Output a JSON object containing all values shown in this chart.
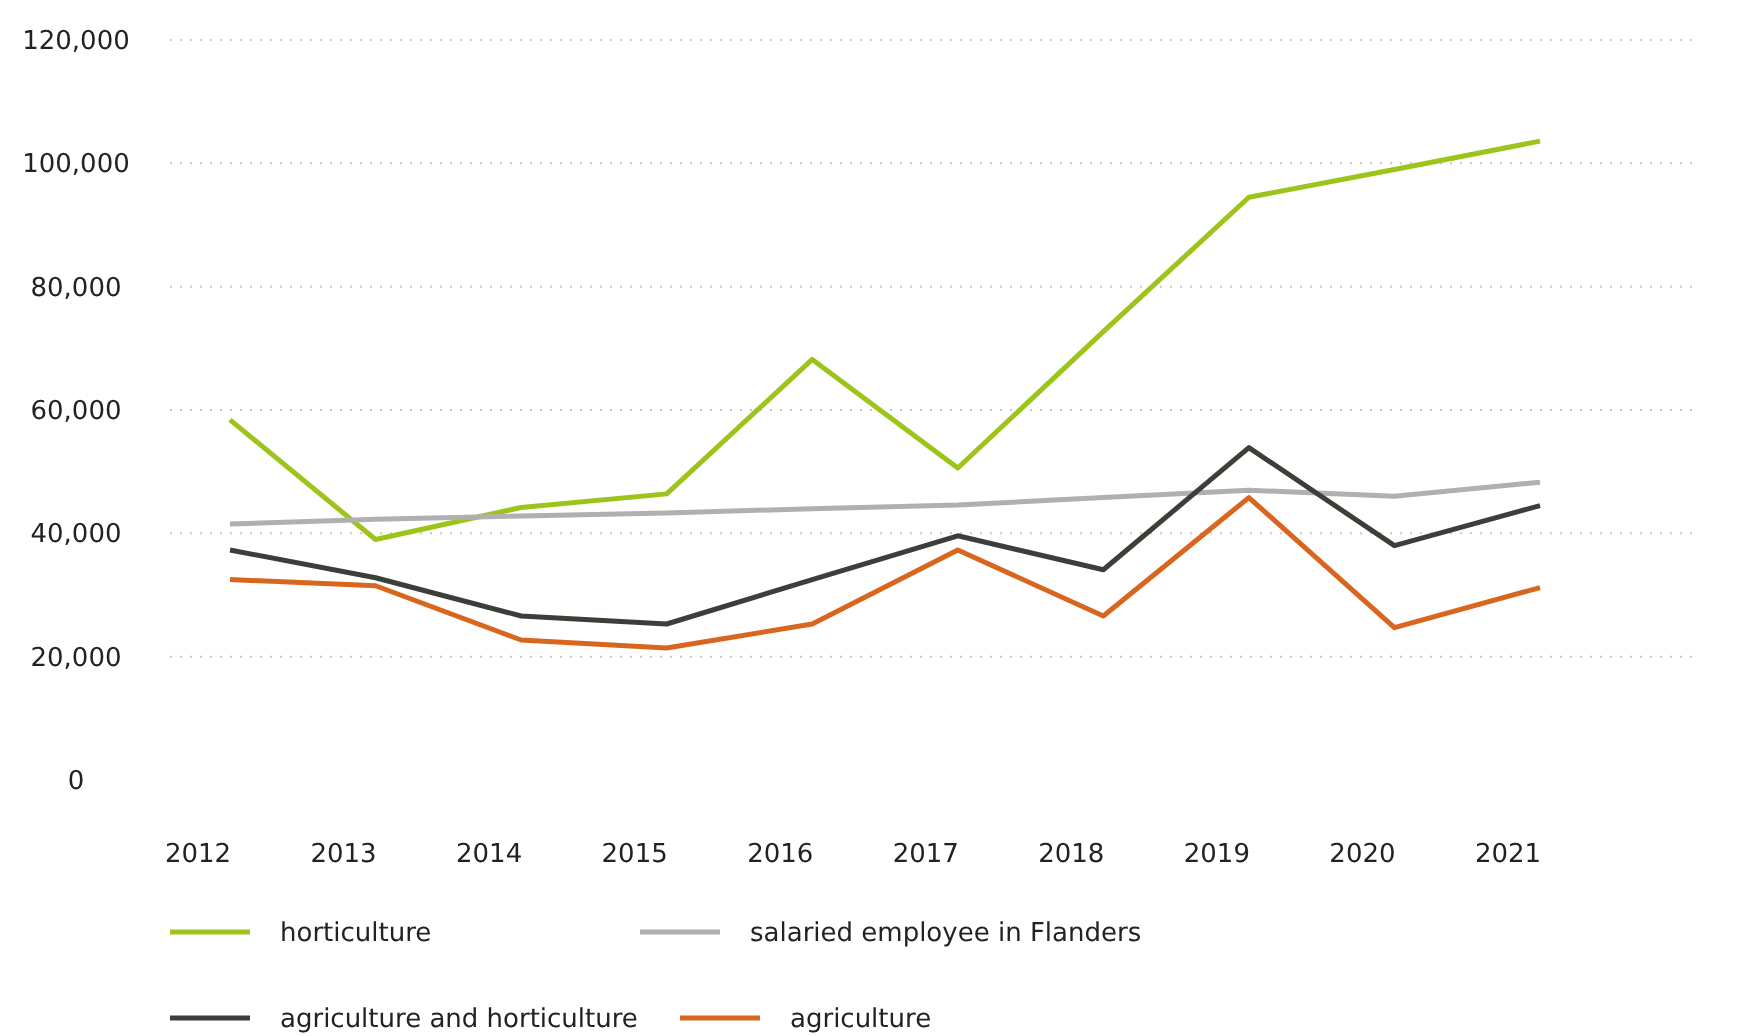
{
  "chart_data": {
    "type": "line",
    "categories": [
      "2012",
      "2013",
      "2014",
      "2015",
      "2016",
      "2017",
      "2018",
      "2019",
      "2020",
      "2021"
    ],
    "ylim": [
      0,
      120000
    ],
    "yticks": [
      {
        "value": 0,
        "label": "0"
      },
      {
        "value": 20000,
        "label": "20,000"
      },
      {
        "value": 40000,
        "label": "40,000"
      },
      {
        "value": 60000,
        "label": "60,000"
      },
      {
        "value": 80000,
        "label": "80,000"
      },
      {
        "value": 100000,
        "label": "100,000"
      },
      {
        "value": 120000,
        "label": "120,000"
      }
    ],
    "grid": "y",
    "legend": "bottom",
    "marker": "none",
    "line_style": "solid",
    "series": [
      {
        "name": "horticulture",
        "color": "#9dc41a",
        "values": [
          58400,
          39000,
          44200,
          46400,
          68200,
          50600,
          72700,
          94500,
          99000,
          103600
        ]
      },
      {
        "name": "salaried employee in Flanders",
        "color": "#b0b0b0",
        "values": [
          41500,
          42300,
          42800,
          43300,
          44000,
          44600,
          45800,
          47000,
          46000,
          48300
        ]
      },
      {
        "name": "agriculture and horticulture",
        "color": "#3a3f38",
        "values": [
          37300,
          32800,
          26600,
          25300,
          32500,
          39600,
          34100,
          53900,
          38000,
          44500
        ]
      },
      {
        "name": "agriculture",
        "color": "#d9661f",
        "values": [
          32500,
          31500,
          22700,
          21400,
          25300,
          37300,
          26600,
          45800,
          24700,
          31200
        ]
      }
    ]
  }
}
